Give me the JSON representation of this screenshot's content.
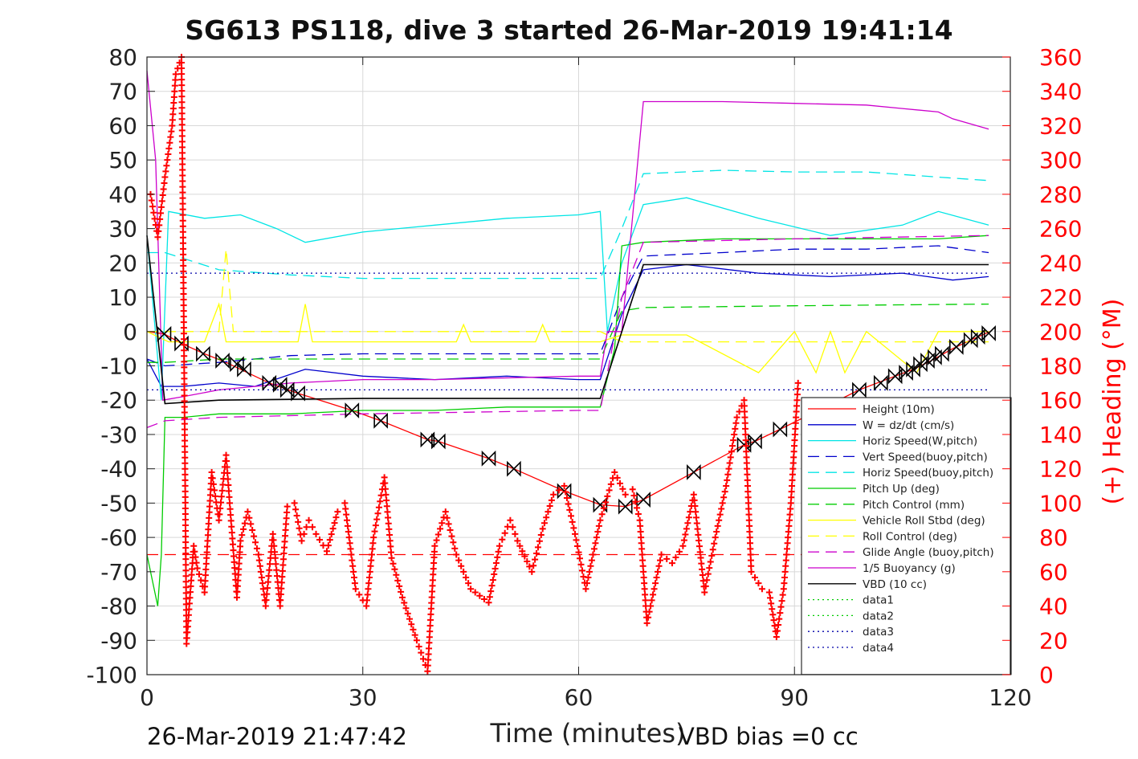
{
  "chart_data": {
    "type": "line",
    "title": "SG613 PS118, dive 3 started 26-Mar-2019 19:41:14",
    "xlabel": "Time (minutes)",
    "ylabel": "",
    "y2label": "(+) Heading (°M)",
    "xlim": [
      0,
      120
    ],
    "ylim": [
      -100,
      80
    ],
    "y2lim": [
      0,
      360
    ],
    "xticks": [
      "0",
      "30",
      "60",
      "90",
      "120"
    ],
    "yticks": [
      "80",
      "70",
      "60",
      "50",
      "40",
      "30",
      "20",
      "10",
      "0",
      "-10",
      "-20",
      "-30",
      "-40",
      "-50",
      "-60",
      "-70",
      "-80",
      "-90",
      "-100"
    ],
    "y2ticks": [
      "360",
      "340",
      "320",
      "300",
      "280",
      "260",
      "240",
      "220",
      "200",
      "180",
      "160",
      "140",
      "120",
      "100",
      "80",
      "60",
      "40",
      "20",
      "0"
    ],
    "grid": true,
    "legend_position": "bottom-right",
    "colors": {
      "height": "#ff0000",
      "w": "#0000cc",
      "hspeed": "#00e5e5",
      "pitch": "#00cc00",
      "roll": "#ffff00",
      "glide": "#cc00cc",
      "buoy": "#cc00cc",
      "vbd": "#000000",
      "heading": "#ff0000",
      "data_green": "#00cc00",
      "data_blue": "#0000aa",
      "y2axis": "#ff0000"
    },
    "series": [
      {
        "name": "Height (10m)",
        "color": "#ff0000",
        "style": "solid",
        "x": [
          0,
          2.4,
          4.8,
          8,
          11,
          13,
          17,
          19,
          21,
          28.5,
          32.5,
          39,
          40.5,
          47.5,
          51,
          58,
          63,
          66.5,
          69,
          76,
          83,
          84.5,
          88,
          99,
          104,
          106.5,
          109,
          112,
          115,
          117.2
        ],
        "y": [
          0,
          -0.7,
          -3.5,
          -6.5,
          -9,
          -11,
          -15,
          -16.5,
          -18,
          -23,
          -26,
          -31.5,
          -32,
          -37,
          -40,
          -46.5,
          -50.5,
          -51,
          -49,
          -41,
          -33,
          -32,
          -28.5,
          -17,
          -13,
          -11,
          -8.5,
          -5,
          -2,
          0
        ]
      },
      {
        "name": "W = dz/dt (cm/s)",
        "color": "#0000cc",
        "style": "solid",
        "x": [
          0,
          2,
          5,
          10,
          15,
          22,
          30,
          40,
          50,
          60,
          63,
          66,
          69,
          75,
          85,
          95,
          105,
          112,
          117
        ],
        "y": [
          -8,
          -16,
          -16,
          -15,
          -16,
          -11,
          -13,
          -14,
          -13,
          -14,
          -14,
          5,
          18,
          19.5,
          17,
          16,
          17,
          15,
          16
        ]
      },
      {
        "name": "Horiz Speed(W,pitch)",
        "color": "#00e5e5",
        "style": "solid",
        "x": [
          0,
          2,
          3,
          8,
          13,
          18,
          22,
          30,
          40,
          50,
          60,
          63,
          64,
          66,
          69,
          75,
          85,
          95,
          105,
          110,
          117
        ],
        "y": [
          28,
          -20,
          35,
          33,
          34,
          30,
          26,
          29,
          31,
          33,
          34,
          35,
          0,
          20,
          37,
          39,
          33,
          28,
          31,
          35,
          31
        ]
      },
      {
        "name": "Vert Speed(buoy,pitch)",
        "color": "#0000cc",
        "style": "dashed",
        "x": [
          0,
          2.5,
          10,
          20,
          30,
          40,
          50,
          60,
          63,
          66,
          69,
          80,
          90,
          100,
          110,
          117
        ],
        "y": [
          -8,
          -10,
          -9,
          -7,
          -6.5,
          -6.5,
          -6.5,
          -6.5,
          -6.5,
          10,
          22,
          23,
          24,
          24,
          25,
          23
        ]
      },
      {
        "name": "Horiz Speed(buoy,pitch)",
        "color": "#00e5e5",
        "style": "dashed",
        "x": [
          0,
          2.5,
          10,
          20,
          30,
          40,
          50,
          60,
          63,
          66,
          69,
          80,
          90,
          100,
          110,
          117
        ],
        "y": [
          23,
          23,
          18,
          16.5,
          15.5,
          15.5,
          15.5,
          15.5,
          15.5,
          30,
          46,
          47,
          46.5,
          46.5,
          45,
          44
        ]
      },
      {
        "name": "Pitch Up (deg)",
        "color": "#00cc00",
        "style": "solid",
        "x": [
          0,
          1.5,
          2,
          2.5,
          5,
          10,
          20,
          30,
          40,
          50,
          60,
          63,
          65,
          66,
          69,
          80,
          90,
          100,
          110,
          117
        ],
        "y": [
          -65,
          -80,
          -65,
          -25,
          -25,
          -24,
          -24,
          -23,
          -23,
          -22,
          -22,
          -22,
          -5,
          25,
          26,
          27,
          27,
          27,
          27,
          28
        ]
      },
      {
        "name": "Pitch Control (mm)",
        "color": "#00cc00",
        "style": "dashed",
        "x": [
          0,
          2.5,
          10,
          30,
          60,
          63,
          66,
          69,
          90,
          117
        ],
        "y": [
          -9,
          -9,
          -8,
          -8,
          -8,
          -8,
          6,
          7,
          7.5,
          8
        ]
      },
      {
        "name": "Vehicle Roll Stbd (deg)",
        "color": "#ffff00",
        "style": "solid",
        "x": [
          0,
          3,
          8,
          10,
          11,
          15,
          21,
          22,
          23,
          30,
          43,
          44,
          45,
          50,
          54,
          55,
          56,
          63,
          66,
          69,
          75,
          85,
          90,
          93,
          95,
          97,
          100,
          107,
          110,
          117
        ],
        "y": [
          0,
          -3,
          -3,
          8,
          -3,
          -3,
          -3,
          8,
          -3,
          -3,
          -3,
          2,
          -3,
          -3,
          -3,
          2,
          -3,
          -3,
          -1,
          -1,
          -1,
          -12,
          0,
          -12,
          0,
          -12,
          0,
          -12,
          0,
          0
        ]
      },
      {
        "name": "Roll Control (deg)",
        "color": "#ffff00",
        "style": "dashed",
        "x": [
          0,
          3,
          10,
          11,
          12,
          20,
          30,
          60,
          63,
          66,
          69,
          90,
          117
        ],
        "y": [
          0,
          0,
          0,
          24,
          0,
          0,
          0,
          0,
          0,
          -3,
          -3,
          -3,
          -3
        ]
      },
      {
        "name": "Glide Angle (buoy,pitch)",
        "color": "#cc00cc",
        "style": "dashed",
        "x": [
          0,
          2.5,
          10,
          30,
          60,
          63,
          66,
          69,
          90,
          117
        ],
        "y": [
          -28,
          -26,
          -25,
          -24,
          -23,
          -23,
          10,
          26,
          27,
          28
        ]
      },
      {
        "name": "1/5 Buoyancy (g)",
        "color": "#cc00cc",
        "style": "solid",
        "x": [
          0,
          1.2,
          2.2,
          5,
          10,
          20,
          30,
          40,
          50,
          60,
          63,
          64,
          66,
          69,
          80,
          90,
          100,
          105,
          110,
          112,
          117
        ],
        "y": [
          76,
          50,
          -20,
          -19,
          -17,
          -15,
          -14,
          -14,
          -13.5,
          -13,
          -13,
          0,
          0,
          67,
          67,
          66.5,
          66,
          65,
          64,
          62,
          59
        ]
      },
      {
        "name": "VBD (10 cc)",
        "color": "#000000",
        "style": "solid",
        "x": [
          0,
          2.5,
          10,
          30,
          60,
          63,
          66,
          69,
          90,
          117
        ],
        "y": [
          28,
          -21,
          -20,
          -19.5,
          -19.5,
          -19.5,
          0,
          19.5,
          19.5,
          19.5
        ]
      },
      {
        "name": "data1",
        "color": "#00cc00",
        "style": "dotted",
        "x": [],
        "y": []
      },
      {
        "name": "data2",
        "color": "#00cc00",
        "style": "dotted",
        "x": [],
        "y": []
      },
      {
        "name": "data3",
        "color": "#0000aa",
        "style": "dotted",
        "x": [
          0,
          117
        ],
        "y": [
          17,
          17
        ]
      },
      {
        "name": "data4",
        "color": "#0000aa",
        "style": "dotted",
        "x": [
          0,
          117
        ],
        "y": [
          -17,
          -17
        ]
      }
    ],
    "heading_series": {
      "name": "(+) Heading",
      "color": "#ff0000",
      "marker": "+",
      "x": [
        0.5,
        1.5,
        2.5,
        3.5,
        4,
        4.8,
        5.5,
        6.5,
        7,
        8,
        9,
        10,
        11,
        11.5,
        12.5,
        13,
        14,
        15.5,
        16.5,
        17.5,
        18.5,
        19.5,
        20.5,
        21.5,
        22.5,
        23.5,
        25,
        26.5,
        27.5,
        29,
        30.5,
        31.5,
        33,
        34,
        35.5,
        37.5,
        39,
        40,
        41.5,
        43,
        45,
        47.5,
        49,
        50.5,
        51.5,
        53.5,
        55,
        56.5,
        58,
        59.5,
        61,
        63,
        65,
        66.5,
        67.5,
        68.5,
        69.5,
        70.5,
        71.5,
        73,
        74.5,
        76,
        77.5,
        79,
        80.5,
        82,
        83,
        84,
        85.5,
        86.5,
        87.5,
        88.5,
        89.5,
        90.5
      ],
      "y": [
        280,
        255,
        290,
        320,
        350,
        360,
        18,
        75,
        62,
        48,
        118,
        90,
        128,
        100,
        45,
        78,
        95,
        70,
        40,
        82,
        40,
        98,
        100,
        78,
        90,
        82,
        72,
        95,
        100,
        50,
        40,
        80,
        115,
        68,
        45,
        20,
        2,
        75,
        95,
        70,
        50,
        42,
        75,
        90,
        78,
        60,
        85,
        105,
        110,
        82,
        50,
        90,
        118,
        105,
        108,
        90,
        30,
        50,
        70,
        65,
        75,
        105,
        48,
        80,
        110,
        150,
        160,
        60,
        50,
        48,
        22,
        50,
        100,
        170
      ]
    },
    "vbd_markers": {
      "x": [
        2.4,
        4.8,
        7.8,
        10.5,
        12.5,
        13.5,
        17,
        18.5,
        19.5,
        21,
        28.5,
        32.5,
        39,
        40.5,
        47.5,
        51,
        58,
        63,
        66.5,
        69,
        76,
        83,
        84.5,
        88,
        99,
        102,
        104,
        105.5,
        106.5,
        107.5,
        108.5,
        109.5,
        110.5,
        112.5,
        114.5,
        115.5,
        117
      ],
      "y": [
        -0.7,
        -3.5,
        -6.5,
        -8.5,
        -9.5,
        -11,
        -15,
        -15.5,
        -17,
        -18,
        -23,
        -26,
        -31.5,
        -32,
        -37,
        -40,
        -46.5,
        -50.5,
        -51,
        -49,
        -41,
        -33,
        -32,
        -28.5,
        -17,
        -15,
        -13,
        -12,
        -11,
        -9.5,
        -8.5,
        -7.5,
        -6.5,
        -4.5,
        -2.5,
        -1.5,
        -0.5
      ]
    },
    "reference_lines": {
      "heading_ref": {
        "y2": 70,
        "color": "#ff0000",
        "style": "dashed"
      }
    }
  },
  "footer": {
    "left_text": "26-Mar-2019 21:47:42",
    "right_text": "VBD bias =0 cc"
  }
}
